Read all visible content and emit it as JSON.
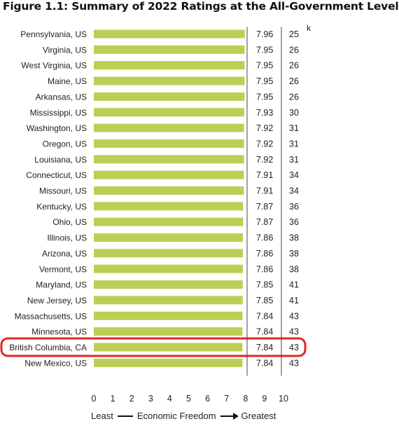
{
  "title": "Figure 1.1: Summary of 2022 Ratings at the All-Government Level",
  "rank_header_fragment": "k",
  "caption": {
    "least": "Least",
    "middle": "Economic Freedom",
    "greatest": "Greatest"
  },
  "colors": {
    "bar": "#bccf55",
    "highlight": "#e02828",
    "axis": "#222222"
  },
  "chart_data": {
    "type": "bar",
    "orientation": "horizontal",
    "title": "Figure 1.1: Summary of 2022 Ratings at the All-Government Level",
    "xlabel": "Least — Economic Freedom → Greatest",
    "xlim": [
      0,
      10
    ],
    "xticks": [
      "0",
      "1",
      "2",
      "3",
      "4",
      "5",
      "6",
      "7",
      "8",
      "9",
      "10"
    ],
    "grid": false,
    "categories": [
      "Pennsylvania, US",
      "Virginia, US",
      "West Virginia, US",
      "Maine, US",
      "Arkansas, US",
      "Mississippi, US",
      "Washington, US",
      "Oregon, US",
      "Louisiana, US",
      "Connecticut, US",
      "Missouri, US",
      "Kentucky, US",
      "Ohio, US",
      "Illinois, US",
      "Arizona, US",
      "Vermont, US",
      "Maryland, US",
      "New Jersey, US",
      "Massachusetts, US",
      "Minnesota, US",
      "British Columbia, CA",
      "New Mexico, US"
    ],
    "values": [
      7.96,
      7.95,
      7.95,
      7.95,
      7.95,
      7.93,
      7.92,
      7.92,
      7.92,
      7.91,
      7.91,
      7.87,
      7.87,
      7.86,
      7.86,
      7.86,
      7.85,
      7.85,
      7.84,
      7.84,
      7.84,
      7.84
    ],
    "value_labels": [
      "7.96",
      "7.95",
      "7.95",
      "7.95",
      "7.95",
      "7.93",
      "7.92",
      "7.92",
      "7.92",
      "7.91",
      "7.91",
      "7.87",
      "7.87",
      "7.86",
      "7.86",
      "7.86",
      "7.85",
      "7.85",
      "7.84",
      "7.84",
      "7.84",
      "7.84"
    ],
    "ranks": [
      "25",
      "26",
      "26",
      "26",
      "26",
      "30",
      "31",
      "31",
      "31",
      "34",
      "34",
      "36",
      "36",
      "38",
      "38",
      "38",
      "41",
      "41",
      "43",
      "43",
      "43",
      "43"
    ],
    "highlighted_category": "British Columbia, CA"
  }
}
